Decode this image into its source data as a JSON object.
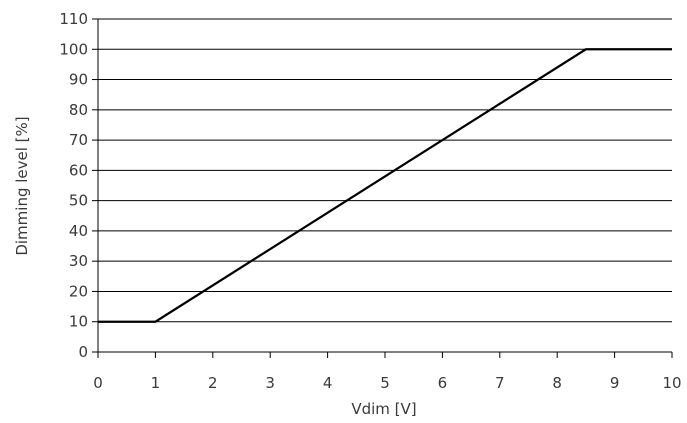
{
  "chart_data": {
    "type": "line",
    "title": "",
    "xlabel": "Vdim [V]",
    "ylabel": "Dimming level [%]",
    "xlim": [
      0,
      10
    ],
    "ylim": [
      0,
      110
    ],
    "x_ticks": [
      0,
      1,
      2,
      3,
      4,
      5,
      6,
      7,
      8,
      9,
      10
    ],
    "y_ticks": [
      0,
      10,
      20,
      30,
      40,
      50,
      60,
      70,
      80,
      90,
      100,
      110
    ],
    "grid": "horizontal",
    "legend": "none",
    "series": [
      {
        "x": [
          0,
          1,
          8.5,
          10
        ],
        "y": [
          10,
          10,
          100,
          100
        ],
        "color": "#000000"
      }
    ]
  }
}
